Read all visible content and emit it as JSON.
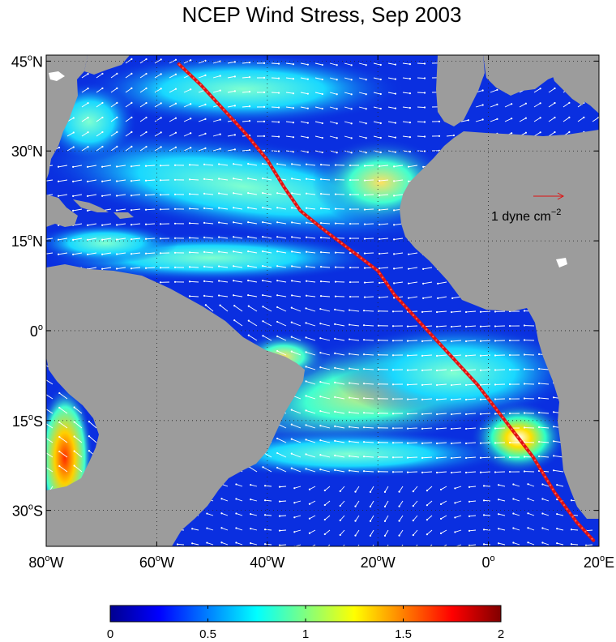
{
  "title": "NCEP Wind Stress, Sep 2003",
  "map": {
    "lon_range": [
      -80,
      20
    ],
    "lat_range": [
      -36,
      46
    ],
    "lat_ticks": [
      {
        "value": 45,
        "deg": "45",
        "hemi": "N"
      },
      {
        "value": 30,
        "deg": "30",
        "hemi": "N"
      },
      {
        "value": 15,
        "deg": "15",
        "hemi": "N"
      },
      {
        "value": 0,
        "deg": "0",
        "hemi": ""
      },
      {
        "value": -15,
        "deg": "15",
        "hemi": "S"
      },
      {
        "value": -30,
        "deg": "30",
        "hemi": "S"
      }
    ],
    "lon_ticks": [
      {
        "value": -80,
        "deg": "80",
        "hemi": "W"
      },
      {
        "value": -60,
        "deg": "60",
        "hemi": "W"
      },
      {
        "value": -40,
        "deg": "40",
        "hemi": "W"
      },
      {
        "value": -20,
        "deg": "20",
        "hemi": "W"
      },
      {
        "value": 0,
        "deg": "0",
        "hemi": ""
      },
      {
        "value": 20,
        "deg": "20",
        "hemi": "E"
      }
    ],
    "land_color": "#9c9c9c",
    "ocean_low_color": "#0a2fe0",
    "arrow_color": "#ffffff",
    "track_color": "#e01010",
    "track": [
      [
        -56,
        44.5
      ],
      [
        -52,
        41
      ],
      [
        -48,
        37
      ],
      [
        -44,
        33
      ],
      [
        -40,
        28.5
      ],
      [
        -37,
        24
      ],
      [
        -34,
        20
      ],
      [
        -30,
        17
      ],
      [
        -25,
        13.5
      ],
      [
        -20,
        10
      ],
      [
        -17,
        6
      ],
      [
        -12,
        1
      ],
      [
        -7,
        -4
      ],
      [
        -2,
        -9
      ],
      [
        3,
        -15
      ],
      [
        8,
        -21
      ],
      [
        12,
        -27
      ],
      [
        16,
        -32
      ],
      [
        19,
        -35
      ]
    ]
  },
  "reference_vector": {
    "label": "1 dyne cm",
    "exponent": "−2"
  },
  "colorbar": {
    "min": 0,
    "max": 2,
    "ticks": [
      "0",
      "0.5",
      "1",
      "1.5",
      "2"
    ],
    "colormap": "jet"
  }
}
